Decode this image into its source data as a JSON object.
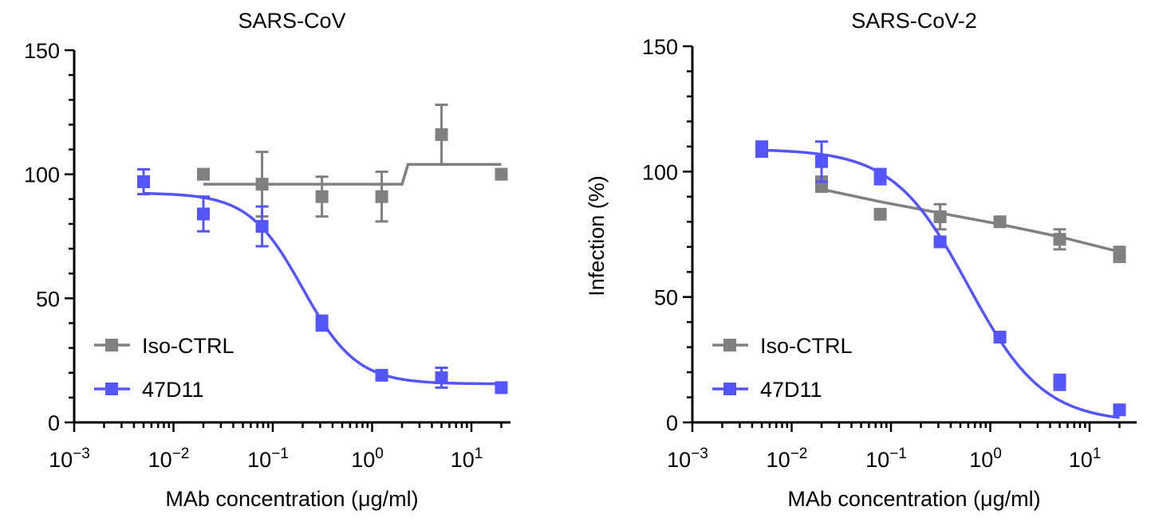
{
  "colors": {
    "iso": "#808080",
    "mab": "#5555ff",
    "axis": "#000000"
  },
  "chart_data": [
    {
      "type": "scatter",
      "title": "SARS-CoV",
      "xlabel": "MAb concentration (μg/ml)",
      "ylabel": "",
      "xscale": "log",
      "xlim_exp": [
        -3,
        1.5
      ],
      "xticks": [
        {
          "base": "10",
          "exp": "−3",
          "v": -3
        },
        {
          "base": "10",
          "exp": "−2",
          "v": -2
        },
        {
          "base": "10",
          "exp": "−1",
          "v": -1
        },
        {
          "base": "10",
          "exp": "0",
          "v": 0
        },
        {
          "base": "10",
          "exp": "1",
          "v": 1
        }
      ],
      "ylim": [
        0,
        150
      ],
      "yticks": [
        "0",
        "50",
        "100",
        "150"
      ],
      "legend": {
        "placement": "bottom-left",
        "entries": [
          "Iso-CTRL",
          "47D11"
        ]
      },
      "series": [
        {
          "name": "Iso-CTRL",
          "color_key": "iso",
          "x": [
            0.02,
            0.078,
            0.3125,
            1.25,
            5,
            20
          ],
          "y": [
            100,
            96,
            91,
            91,
            116,
            100
          ],
          "err": [
            2,
            13,
            8,
            10,
            12,
            1
          ],
          "fit": {
            "kind": "points",
            "x": [
              0.02,
              2.0,
              2.3,
              20
            ],
            "y": [
              96,
              96,
              104,
              104
            ]
          }
        },
        {
          "name": "47D11",
          "color_key": "mab",
          "x": [
            0.005,
            0.02,
            0.078,
            0.3125,
            1.25,
            5,
            20
          ],
          "y": [
            97,
            84,
            79,
            40,
            19,
            18,
            14
          ],
          "err": [
            5,
            7,
            8,
            3,
            1,
            4,
            1
          ],
          "fit": {
            "kind": "logistic",
            "top": 92.5,
            "bottom": 15.5,
            "ic50": 0.2,
            "hill": 1.6,
            "xmin": 0.005,
            "xmax": 20
          }
        }
      ]
    },
    {
      "type": "scatter",
      "title": "SARS-CoV-2",
      "xlabel": "MAb concentration (μg/ml)",
      "ylabel": "Infection (%)",
      "xscale": "log",
      "xlim_exp": [
        -3,
        1.5
      ],
      "xticks": [
        {
          "base": "10",
          "exp": "−3",
          "v": -3
        },
        {
          "base": "10",
          "exp": "−2",
          "v": -2
        },
        {
          "base": "10",
          "exp": "−1",
          "v": -1
        },
        {
          "base": "10",
          "exp": "0",
          "v": 0
        },
        {
          "base": "10",
          "exp": "1",
          "v": 1
        }
      ],
      "ylim": [
        0,
        150
      ],
      "yticks": [
        "0",
        "50",
        "100",
        "150"
      ],
      "legend": {
        "placement": "bottom-left",
        "entries": [
          "Iso-CTRL",
          "47D11"
        ]
      },
      "series": [
        {
          "name": "Iso-CTRL",
          "color_key": "iso",
          "x": [
            0.02,
            0.078,
            0.3125,
            1.25,
            5,
            20
          ],
          "y": [
            95,
            83,
            82,
            80,
            73,
            67
          ],
          "err": [
            3,
            1,
            5,
            1,
            4,
            3
          ],
          "fit": {
            "kind": "points",
            "x": [
              0.02,
              0.078,
              0.3125,
              1.25,
              5,
              20
            ],
            "y": [
              93,
              88,
              83.5,
              79,
              74,
              68
            ]
          }
        },
        {
          "name": "47D11",
          "color_key": "mab",
          "x": [
            0.005,
            0.02,
            0.078,
            0.3125,
            1.25,
            5,
            20
          ],
          "y": [
            109,
            104,
            98,
            72,
            34,
            16,
            5
          ],
          "err": [
            3,
            8,
            3,
            1,
            1,
            3,
            1
          ],
          "fit": {
            "kind": "logistic",
            "top": 109,
            "bottom": 0,
            "ic50": 0.6,
            "hill": 1.15,
            "xmin": 0.005,
            "xmax": 20
          }
        }
      ]
    }
  ]
}
